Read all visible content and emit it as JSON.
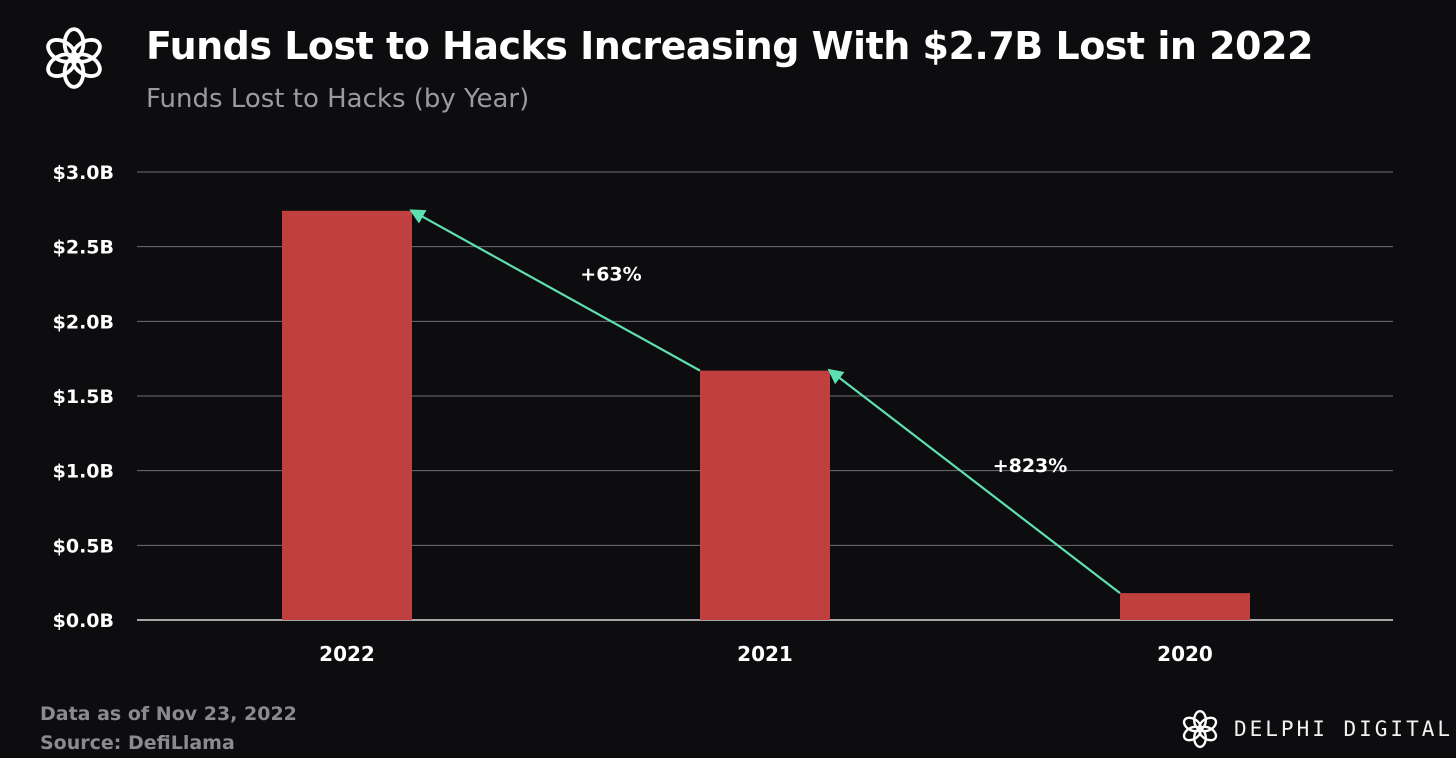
{
  "title": "Funds Lost to Hacks Increasing With $2.7B Lost in 2022",
  "subtitle": "Funds Lost to Hacks (by Year)",
  "footnotes": {
    "date": "Data as of Nov 23, 2022",
    "source": "Source: DefiLlama"
  },
  "brand": {
    "name": "DELPHI DIGITAL",
    "logo_icon": "delphi-flower-icon"
  },
  "colors": {
    "background": "#0d0d10",
    "bar": "#c04040",
    "arrow": "#5fe0b0",
    "grid": "#6e6e74",
    "text": "#ffffff",
    "muted": "#9a9aa0"
  },
  "chart_data": {
    "type": "bar",
    "categories": [
      "2022",
      "2021",
      "2020"
    ],
    "values": [
      2.74,
      1.67,
      0.18
    ],
    "ylim": [
      0,
      3.0
    ],
    "yticks": [
      {
        "value": 0.0,
        "label": "$0.0B"
      },
      {
        "value": 0.5,
        "label": "$0.5B"
      },
      {
        "value": 1.0,
        "label": "$1.0B"
      },
      {
        "value": 1.5,
        "label": "$1.5B"
      },
      {
        "value": 2.0,
        "label": "$2.0B"
      },
      {
        "value": 2.5,
        "label": "$2.5B"
      },
      {
        "value": 3.0,
        "label": "$3.0B"
      }
    ],
    "grid": true,
    "annotations": [
      {
        "from": "2021",
        "to": "2022",
        "label": "+63%"
      },
      {
        "from": "2020",
        "to": "2021",
        "label": "+823%"
      }
    ]
  }
}
